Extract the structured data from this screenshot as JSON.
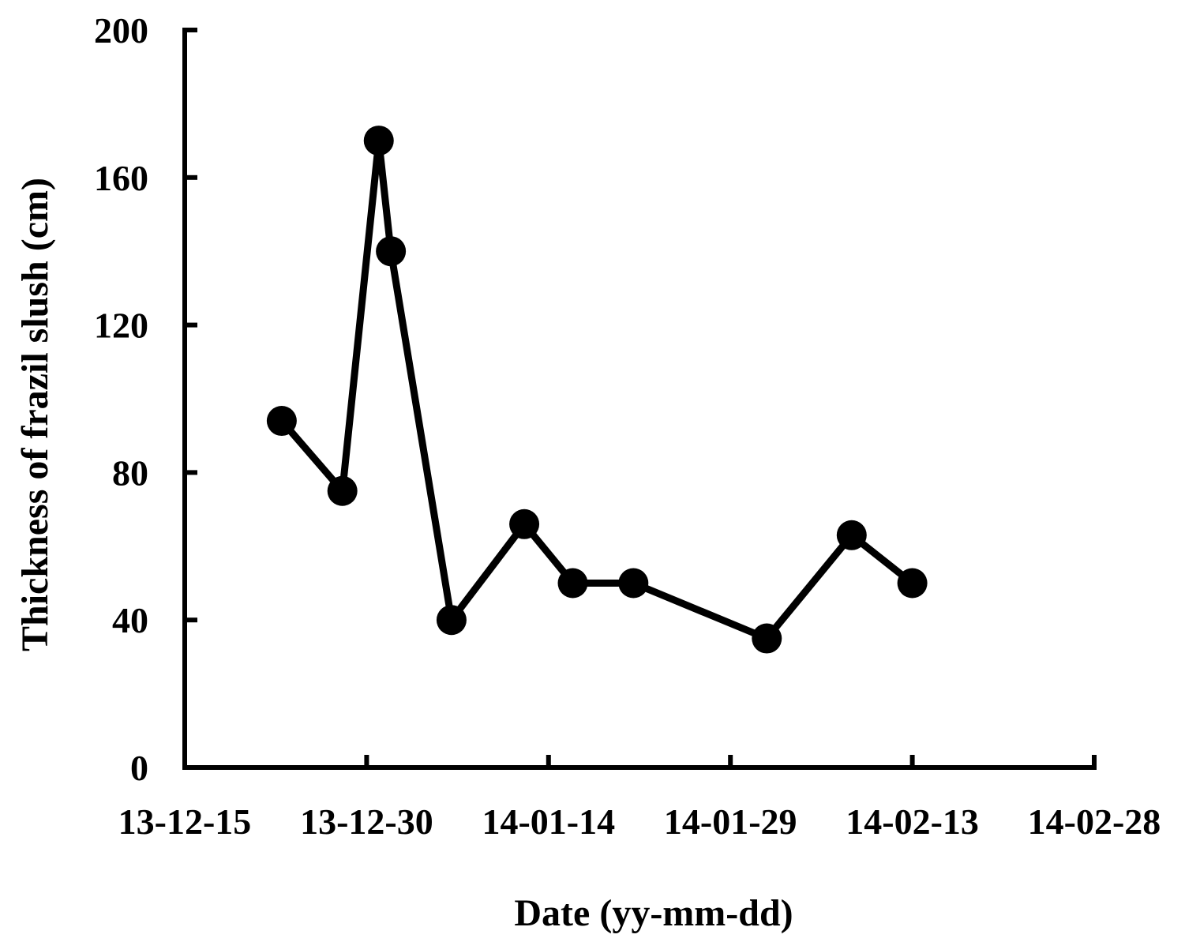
{
  "chart_data": {
    "type": "line",
    "title": "",
    "xlabel": "Date (yy-mm-dd)",
    "ylabel": "Thickness of frazil slush (cm)",
    "x_tick_labels": [
      "13-12-15",
      "13-12-30",
      "14-01-14",
      "14-01-29",
      "14-02-13",
      "14-02-28"
    ],
    "xlim": [
      "2013-12-15",
      "2014-02-28"
    ],
    "ylim": [
      0,
      200
    ],
    "y_ticks": [
      0,
      40,
      80,
      120,
      160,
      200
    ],
    "grid": false,
    "legend": "none",
    "series": [
      {
        "x": [
          "2013-12-23",
          "2013-12-28",
          "2013-12-31",
          "2014-01-01",
          "2014-01-06",
          "2014-01-12",
          "2014-01-16",
          "2014-01-21",
          "2014-02-01",
          "2014-02-08",
          "2014-02-13"
        ],
        "y": [
          94,
          75,
          170,
          140,
          40,
          66,
          50,
          50,
          35,
          63,
          50
        ]
      }
    ],
    "colors": {
      "line": "#000000",
      "marker": "#000000",
      "axis": "#000000"
    }
  }
}
